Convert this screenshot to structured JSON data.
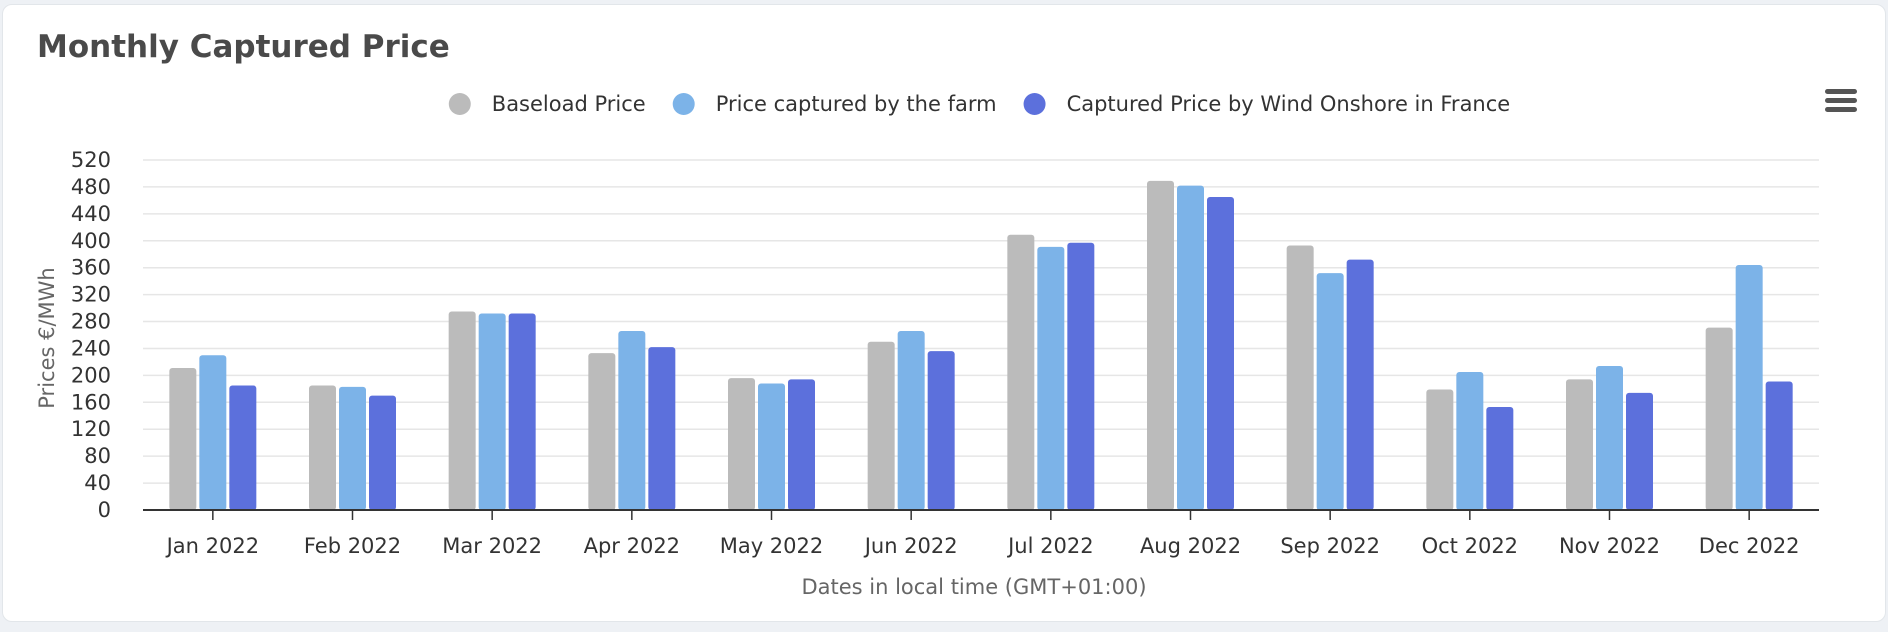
{
  "chart_data": {
    "type": "bar",
    "title": "Monthly Captured Price",
    "xlabel": "Dates in local time (GMT+01:00)",
    "ylabel": "Prices €/MWh",
    "ylim": [
      0,
      520
    ],
    "yticks": [
      0,
      40,
      80,
      120,
      160,
      200,
      240,
      280,
      320,
      360,
      400,
      440,
      480,
      520
    ],
    "grid": true,
    "legend_position": "top-center",
    "categories": [
      "Jan 2022",
      "Feb 2022",
      "Mar 2022",
      "Apr 2022",
      "May 2022",
      "Jun 2022",
      "Jul 2022",
      "Aug 2022",
      "Sep 2022",
      "Oct 2022",
      "Nov 2022",
      "Dec 2022"
    ],
    "series": [
      {
        "name": "Baseload Price",
        "color": "#bbbbbb",
        "values": [
          211,
          185,
          295,
          233,
          196,
          250,
          409,
          489,
          393,
          179,
          194,
          271
        ]
      },
      {
        "name": "Price captured by the farm",
        "color": "#7cb3e8",
        "values": [
          230,
          183,
          292,
          266,
          188,
          266,
          391,
          482,
          352,
          205,
          214,
          364
        ]
      },
      {
        "name": "Captured Price by Wind Onshore in France",
        "color": "#5c70dc",
        "values": [
          185,
          170,
          292,
          242,
          194,
          236,
          397,
          465,
          372,
          153,
          174,
          191
        ]
      }
    ]
  },
  "ui": {
    "menu_icon": "hamburger-menu-icon"
  }
}
